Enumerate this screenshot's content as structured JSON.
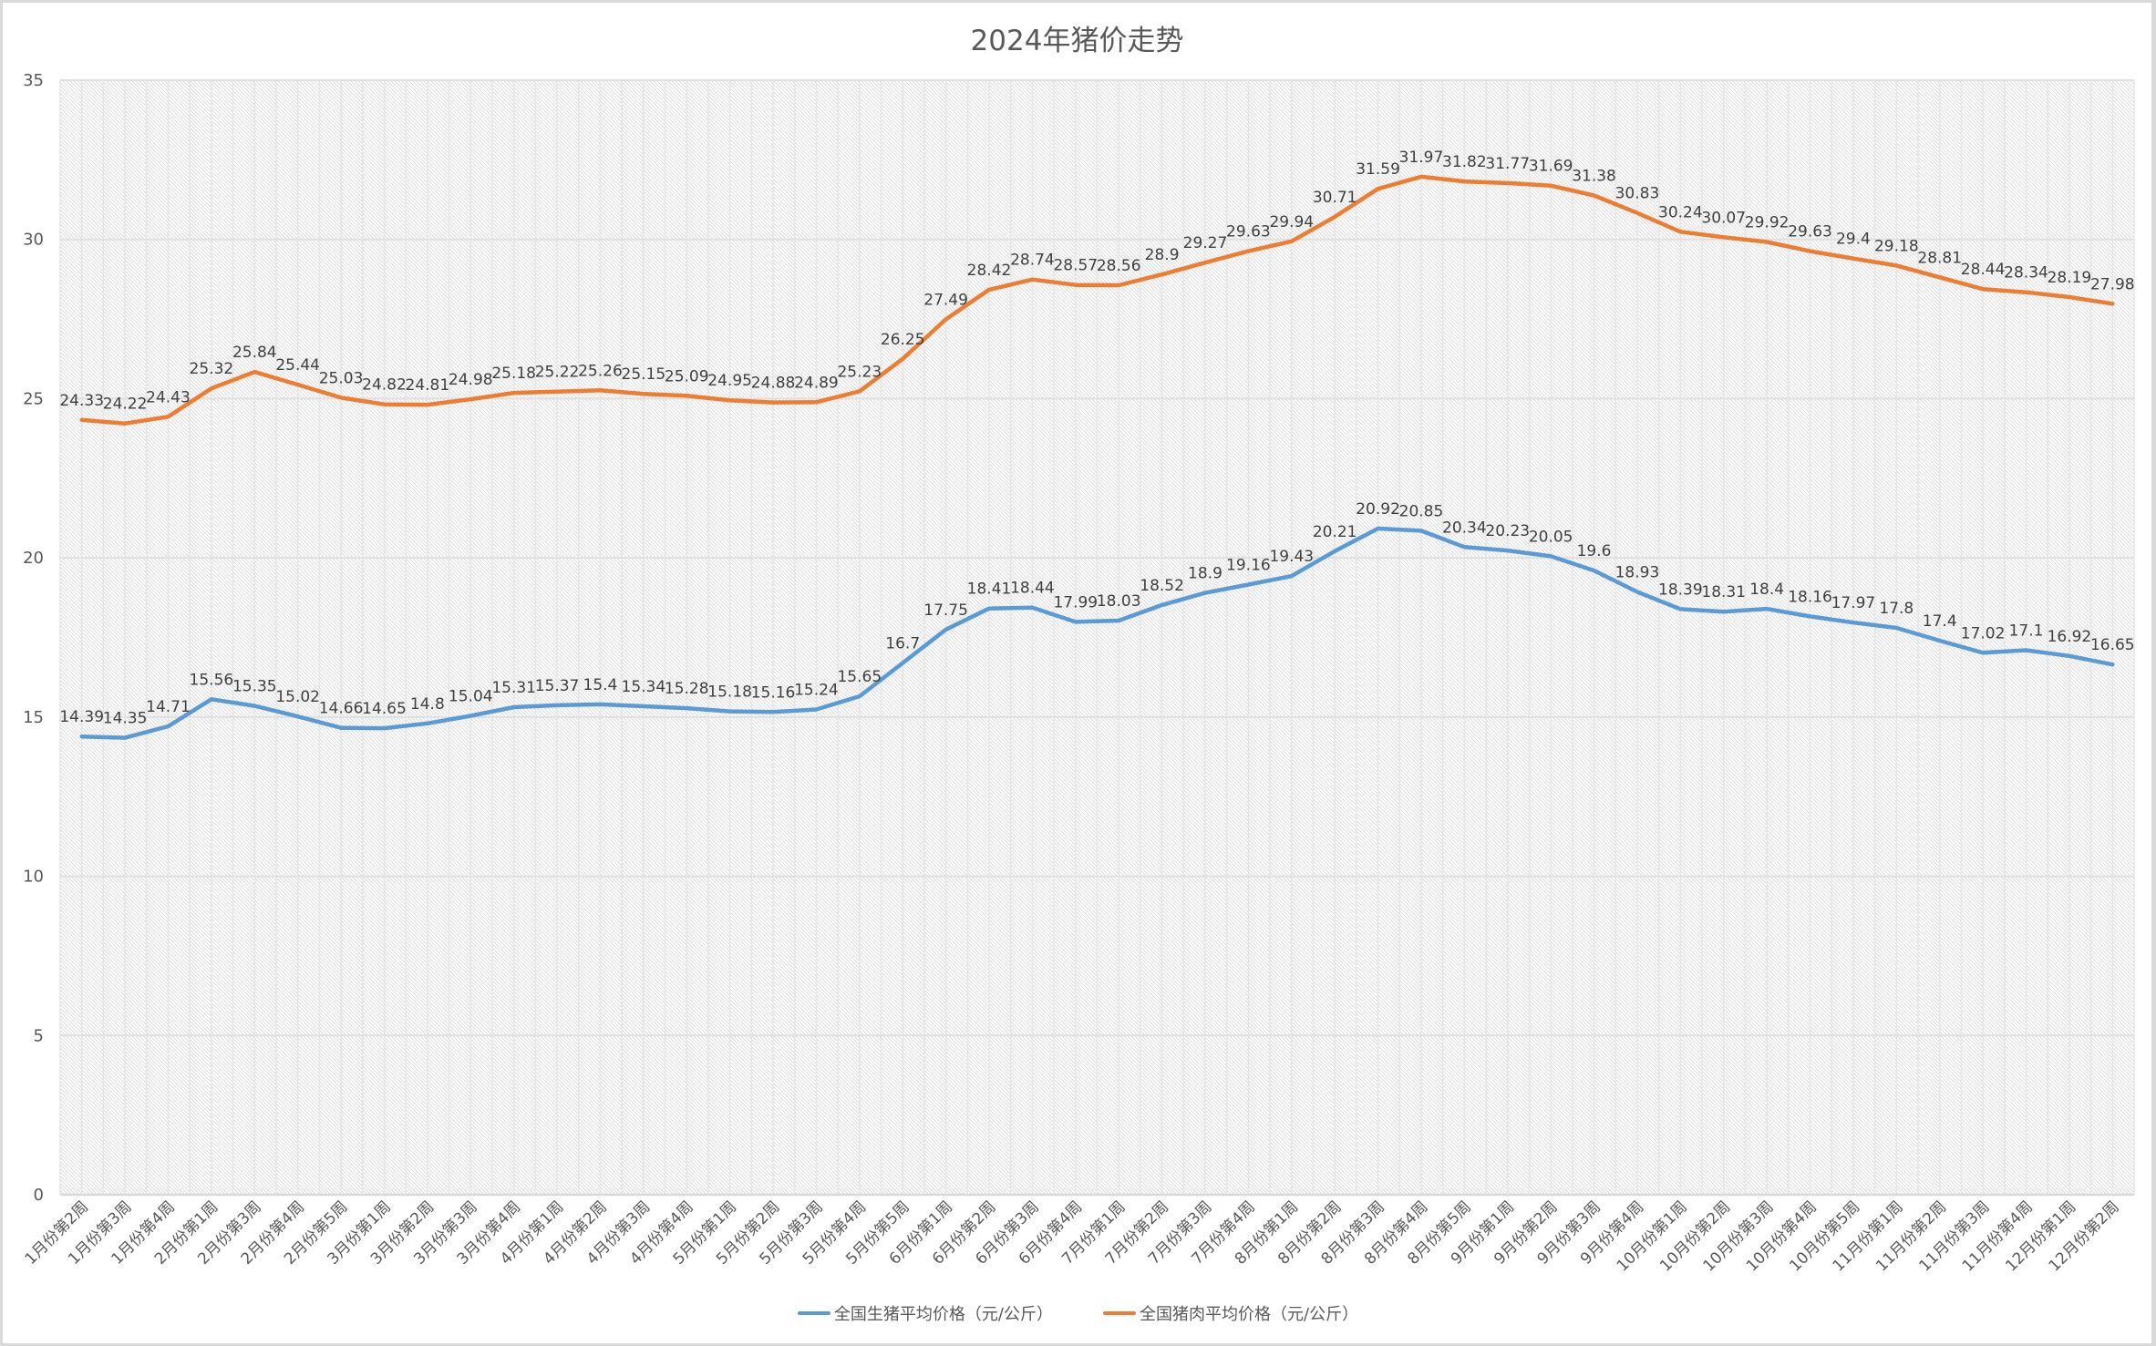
{
  "chart_data": {
    "type": "line",
    "title": "2024年猪价走势",
    "xlabel": "",
    "ylabel": "",
    "ylim": [
      0,
      35
    ],
    "yticks": [
      0,
      5,
      10,
      15,
      20,
      25,
      30,
      35
    ],
    "grid": true,
    "legend_position": "bottom",
    "categories": [
      "1月份第2周",
      "1月份第3周",
      "1月份第4周",
      "2月份第1周",
      "2月份第3周",
      "2月份第4周",
      "2月份第5周",
      "3月份第1周",
      "3月份第2周",
      "3月份第3周",
      "3月份第4周",
      "4月份第1周",
      "4月份第2周",
      "4月份第3周",
      "4月份第4周",
      "5月份第1周",
      "5月份第2周",
      "5月份第3周",
      "5月份第4周",
      "5月份第5周",
      "6月份第1周",
      "6月份第2周",
      "6月份第3周",
      "6月份第4周",
      "7月份第1周",
      "7月份第2周",
      "7月份第3周",
      "7月份第4周",
      "8月份第1周",
      "8月份第2周",
      "8月份第3周",
      "8月份第4周",
      "8月份第5周",
      "9月份第1周",
      "9月份第2周",
      "9月份第3周",
      "9月份第4周",
      "10月份第1周",
      "10月份第2周",
      "10月份第3周",
      "10月份第4周",
      "10月份第5周",
      "11月份第1周",
      "11月份第2周",
      "11月份第3周",
      "11月份第4周",
      "12月份第1周",
      "12月份第2周"
    ],
    "series": [
      {
        "name": "全国生猪平均价格（元/公斤）",
        "color": "#5b9bd5",
        "values": [
          14.39,
          14.35,
          14.71,
          15.56,
          15.35,
          15.02,
          14.66,
          14.65,
          14.8,
          15.04,
          15.31,
          15.37,
          15.4,
          15.34,
          15.28,
          15.18,
          15.16,
          15.24,
          15.65,
          16.7,
          17.75,
          18.41,
          18.44,
          17.99,
          18.03,
          18.52,
          18.9,
          19.16,
          19.43,
          20.21,
          20.92,
          20.85,
          20.34,
          20.23,
          20.05,
          19.6,
          18.93,
          18.39,
          18.31,
          18.4,
          18.16,
          17.97,
          17.8,
          17.4,
          17.02,
          17.1,
          16.92,
          16.65
        ]
      },
      {
        "name": "全国猪肉平均价格（元/公斤）",
        "color": "#ed7d31",
        "values": [
          24.33,
          24.22,
          24.43,
          25.32,
          25.84,
          25.44,
          25.03,
          24.82,
          24.81,
          24.98,
          25.18,
          25.22,
          25.26,
          25.15,
          25.09,
          24.95,
          24.88,
          24.89,
          25.23,
          26.25,
          27.49,
          28.42,
          28.74,
          28.57,
          28.56,
          28.9,
          29.27,
          29.63,
          29.94,
          30.71,
          31.59,
          31.97,
          31.82,
          31.77,
          31.69,
          31.38,
          30.83,
          30.24,
          30.07,
          29.92,
          29.63,
          29.4,
          29.18,
          28.81,
          28.44,
          28.34,
          28.19,
          27.98
        ]
      }
    ]
  }
}
